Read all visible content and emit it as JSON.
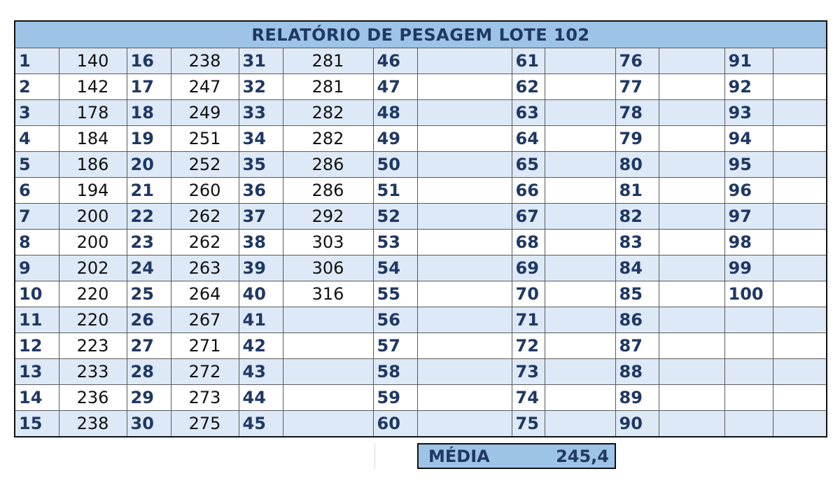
{
  "title": "RELATÓRIO DE PESAGEM LOTE 102",
  "rows": [
    {
      "ids": [
        "1",
        "16",
        "31",
        "46",
        "61",
        "76",
        "91"
      ],
      "vals": [
        "140",
        "238",
        "281",
        "",
        "",
        "",
        ""
      ]
    },
    {
      "ids": [
        "2",
        "17",
        "32",
        "47",
        "62",
        "77",
        "92"
      ],
      "vals": [
        "142",
        "247",
        "281",
        "",
        "",
        "",
        ""
      ]
    },
    {
      "ids": [
        "3",
        "18",
        "33",
        "48",
        "63",
        "78",
        "93"
      ],
      "vals": [
        "178",
        "249",
        "282",
        "",
        "",
        "",
        ""
      ]
    },
    {
      "ids": [
        "4",
        "19",
        "34",
        "49",
        "64",
        "79",
        "94"
      ],
      "vals": [
        "184",
        "251",
        "282",
        "",
        "",
        "",
        ""
      ]
    },
    {
      "ids": [
        "5",
        "20",
        "35",
        "50",
        "65",
        "80",
        "95"
      ],
      "vals": [
        "186",
        "252",
        "286",
        "",
        "",
        "",
        ""
      ]
    },
    {
      "ids": [
        "6",
        "21",
        "36",
        "51",
        "66",
        "81",
        "96"
      ],
      "vals": [
        "194",
        "260",
        "286",
        "",
        "",
        "",
        ""
      ]
    },
    {
      "ids": [
        "7",
        "22",
        "37",
        "52",
        "67",
        "82",
        "97"
      ],
      "vals": [
        "200",
        "262",
        "292",
        "",
        "",
        "",
        ""
      ]
    },
    {
      "ids": [
        "8",
        "23",
        "38",
        "53",
        "68",
        "83",
        "98"
      ],
      "vals": [
        "200",
        "262",
        "303",
        "",
        "",
        "",
        ""
      ]
    },
    {
      "ids": [
        "9",
        "24",
        "39",
        "54",
        "69",
        "84",
        "99"
      ],
      "vals": [
        "202",
        "263",
        "306",
        "",
        "",
        "",
        ""
      ]
    },
    {
      "ids": [
        "10",
        "25",
        "40",
        "55",
        "70",
        "85",
        "100"
      ],
      "vals": [
        "220",
        "264",
        "316",
        "",
        "",
        "",
        ""
      ]
    },
    {
      "ids": [
        "11",
        "26",
        "41",
        "56",
        "71",
        "86",
        ""
      ],
      "vals": [
        "220",
        "267",
        "",
        "",
        "",
        "",
        ""
      ]
    },
    {
      "ids": [
        "12",
        "27",
        "42",
        "57",
        "72",
        "87",
        ""
      ],
      "vals": [
        "223",
        "271",
        "",
        "",
        "",
        "",
        ""
      ]
    },
    {
      "ids": [
        "13",
        "28",
        "43",
        "58",
        "73",
        "88",
        ""
      ],
      "vals": [
        "233",
        "272",
        "",
        "",
        "",
        "",
        ""
      ]
    },
    {
      "ids": [
        "14",
        "29",
        "44",
        "59",
        "74",
        "89",
        ""
      ],
      "vals": [
        "236",
        "273",
        "",
        "",
        "",
        "",
        ""
      ]
    },
    {
      "ids": [
        "15",
        "30",
        "45",
        "60",
        "75",
        "90",
        ""
      ],
      "vals": [
        "238",
        "275",
        "",
        "",
        "",
        "",
        ""
      ]
    }
  ],
  "footer": {
    "label": "MÉDIA",
    "value": "245,4"
  }
}
